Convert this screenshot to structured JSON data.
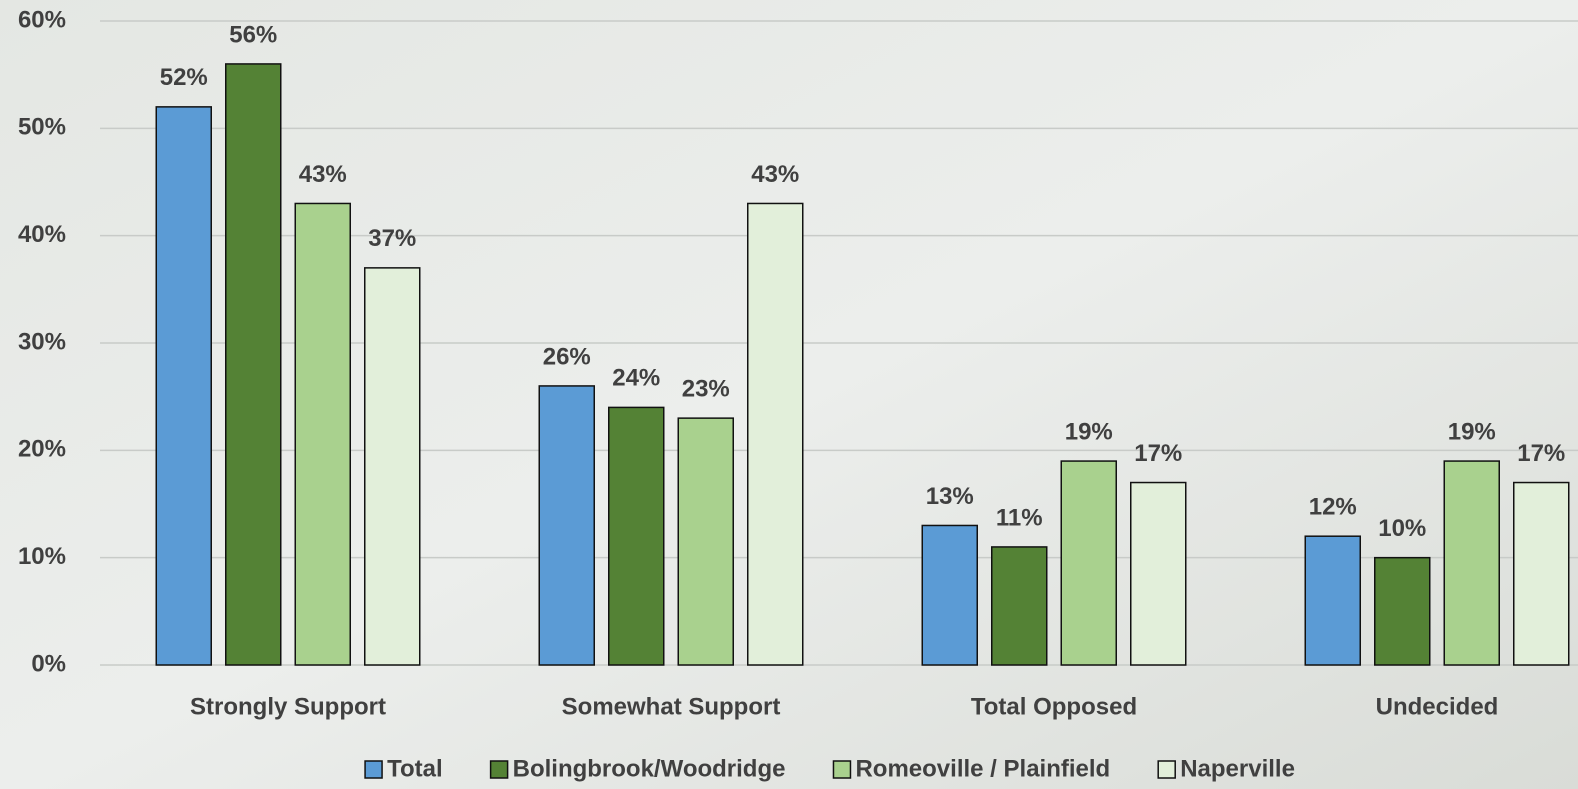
{
  "chart_data": {
    "type": "bar",
    "categories": [
      "Strongly Support",
      "Somewhat Support",
      "Total Opposed",
      "Undecided"
    ],
    "series": [
      {
        "name": "Total",
        "color": "#5b9bd5",
        "values": [
          52,
          26,
          13,
          12
        ],
        "value_labels": [
          "52%",
          "26%",
          "13%",
          "12%"
        ]
      },
      {
        "name": "Bolingbrook/Woodridge",
        "color": "#548235",
        "values": [
          56,
          24,
          11,
          10
        ],
        "value_labels": [
          "56%",
          "24%",
          "11%",
          "10%"
        ]
      },
      {
        "name": "Romeoville / Plainfield",
        "color": "#a9d18e",
        "values": [
          43,
          23,
          19,
          19
        ],
        "value_labels": [
          "43%",
          "23%",
          "19%",
          "19%"
        ]
      },
      {
        "name": "Naperville",
        "color": "#e2efda",
        "values": [
          37,
          43,
          17,
          17
        ],
        "value_labels": [
          "37%",
          "43%",
          "17%",
          "17%"
        ]
      }
    ],
    "ylim": [
      0,
      60
    ],
    "yticks": [
      {
        "value": 0,
        "label": "0%"
      },
      {
        "value": 10,
        "label": "10%"
      },
      {
        "value": 20,
        "label": "20%"
      },
      {
        "value": 30,
        "label": "30%"
      },
      {
        "value": 40,
        "label": "40%"
      },
      {
        "value": 50,
        "label": "50%"
      },
      {
        "value": 60,
        "label": "60%"
      }
    ],
    "grid": true,
    "legend": "bottom"
  }
}
